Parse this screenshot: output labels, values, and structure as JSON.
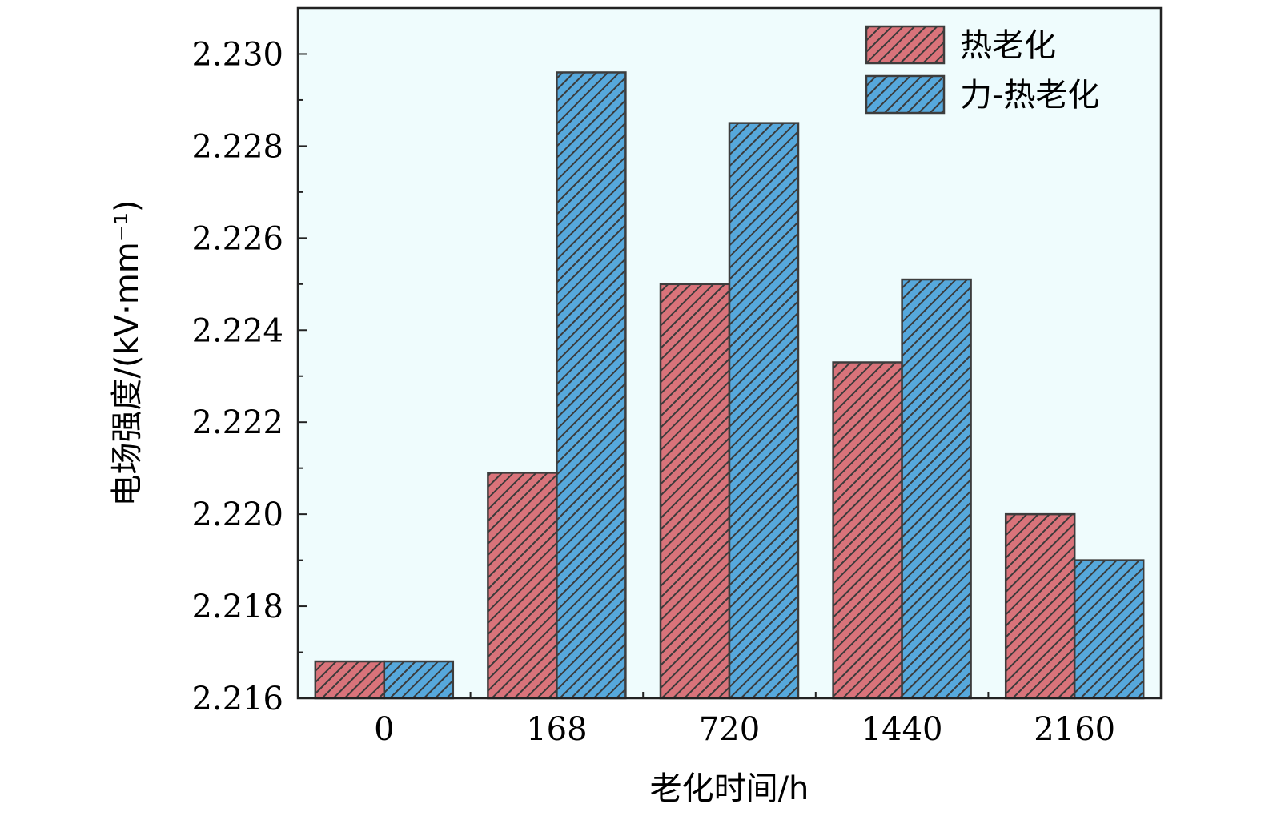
{
  "chart_data": {
    "type": "bar",
    "categories": [
      "0",
      "168",
      "720",
      "1440",
      "2160"
    ],
    "series": [
      {
        "name": "热老化",
        "values": [
          2.2168,
          2.2209,
          2.225,
          2.2233,
          2.22
        ]
      },
      {
        "name": "力-热老化",
        "values": [
          2.2168,
          2.2296,
          2.2285,
          2.2251,
          2.219
        ]
      }
    ],
    "xlabel": "老化时间/h",
    "ylabel": "电场强度/(kV·mm⁻¹)",
    "ylim": [
      2.216,
      2.231
    ],
    "yticks": [
      "2.216",
      "2.218",
      "2.220",
      "2.222",
      "2.224",
      "2.226",
      "2.228",
      "2.230"
    ],
    "grid": false,
    "legend_position": "top-right",
    "colors": {
      "series_0": "#d9737a",
      "series_1": "#56a8dc",
      "plot_background": "#effcfd",
      "hatch": "#3a3a3a",
      "edge": "#3d3d3d"
    }
  }
}
